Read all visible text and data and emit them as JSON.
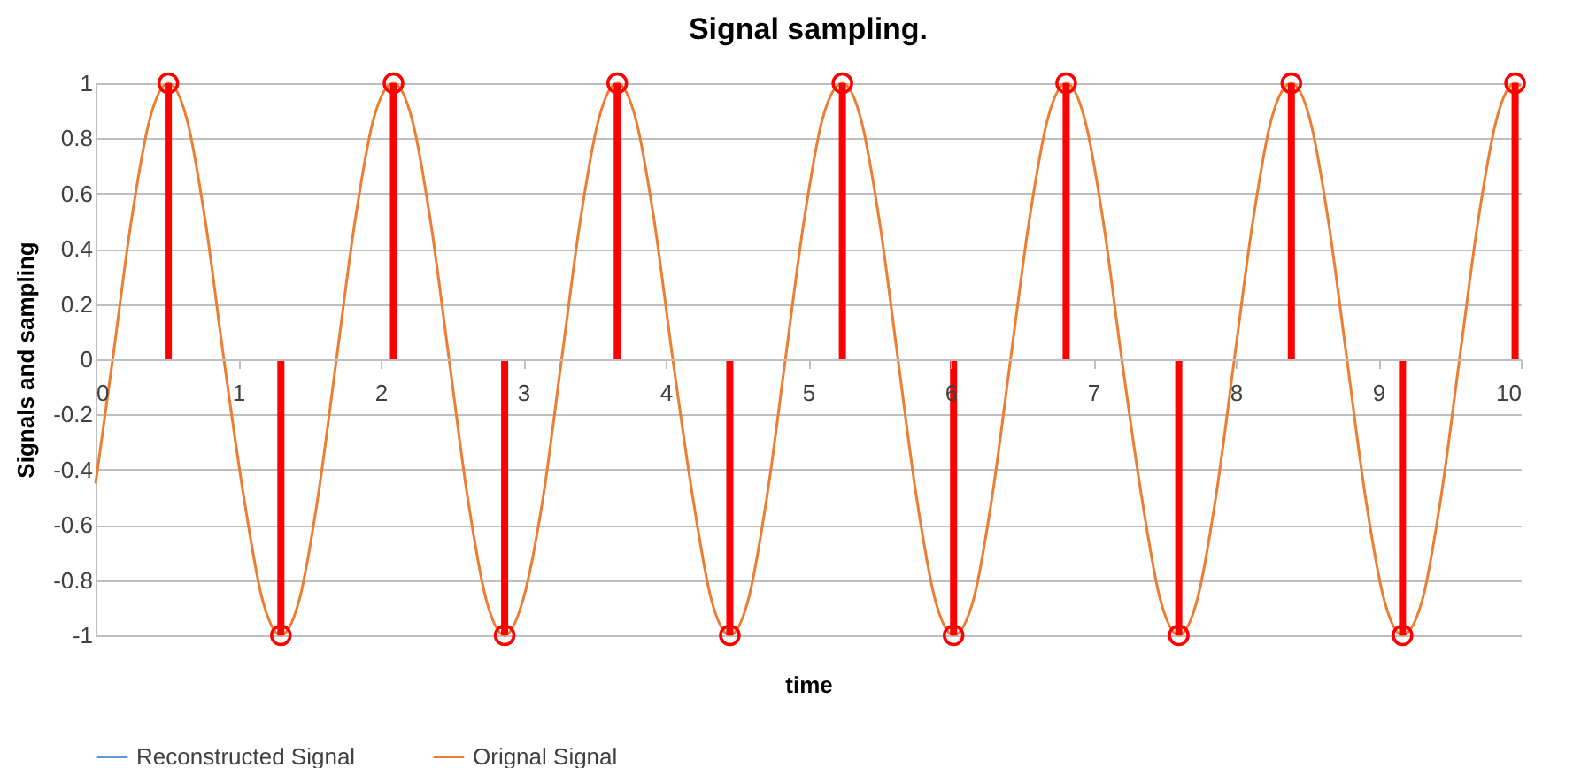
{
  "chart_data": {
    "type": "line",
    "title": "Signal sampling.",
    "xlabel": "time",
    "ylabel": "Signals and sampling",
    "xlim": [
      0,
      10
    ],
    "xticks": [
      0,
      1,
      2,
      3,
      4,
      5,
      6,
      7,
      8,
      9,
      10
    ],
    "ylim": [
      -1,
      1
    ],
    "yticks": [
      -1,
      -0.8,
      -0.6,
      -0.4,
      -0.2,
      0,
      0.2,
      0.4,
      0.6,
      0.8,
      1
    ],
    "grid": "y",
    "legend": "bottom",
    "series": [
      {
        "name": "Reconstructed Signal",
        "color": "#5b9bd5"
      },
      {
        "name": "Orignal Signal",
        "color": "#ed7d31",
        "x": [
          0,
          0.12,
          0.25,
          0.38,
          0.51,
          0.64,
          0.77,
          0.9,
          1.04,
          1.17,
          1.3,
          1.43,
          1.56,
          1.69,
          1.82,
          1.95,
          2.09,
          2.22,
          2.35,
          2.48,
          2.61,
          2.74,
          2.87,
          3.0,
          3.14,
          3.27,
          3.4,
          3.53,
          3.66,
          3.79,
          3.92,
          4.05,
          4.19,
          4.32,
          4.45,
          4.58,
          4.71,
          4.84,
          4.97,
          5.1,
          5.24,
          5.37,
          5.5,
          5.63,
          5.76,
          5.89,
          6.02,
          6.16,
          6.29,
          6.42,
          6.55,
          6.68,
          6.81,
          6.94,
          7.07,
          7.2,
          7.34,
          7.47,
          7.6,
          7.73,
          7.86,
          7.99,
          8.12,
          8.25,
          8.39,
          8.52,
          8.65,
          8.78,
          8.91,
          9.04,
          9.17,
          9.31,
          9.44,
          9.57,
          9.7,
          9.83,
          9.96,
          10
        ],
        "values": [
          -0.45,
          0,
          0.5,
          0.87,
          1,
          0.87,
          0.5,
          0,
          -0.5,
          -0.87,
          -1,
          -0.87,
          -0.5,
          0,
          0.5,
          0.87,
          1,
          0.87,
          0.5,
          0,
          -0.5,
          -0.87,
          -1,
          -0.87,
          -0.5,
          0,
          0.5,
          0.87,
          1,
          0.87,
          0.5,
          0,
          -0.5,
          -0.87,
          -1,
          -0.87,
          -0.5,
          0,
          0.5,
          0.87,
          1,
          0.87,
          0.5,
          0,
          -0.5,
          -0.87,
          -1,
          -0.87,
          -0.5,
          0,
          0.5,
          0.87,
          1,
          0.87,
          0.5,
          0,
          -0.5,
          -0.87,
          -1,
          -0.87,
          -0.5,
          0,
          0.5,
          0.87,
          1,
          0.87,
          0.5,
          0,
          -0.5,
          -0.87,
          -1,
          -0.87,
          -0.5,
          0,
          0.5,
          0.87,
          1,
          0.99
        ]
      },
      {
        "color": "#ff0000",
        "type": "lollipop",
        "marker": "circle",
        "x": [
          0.51,
          1.3,
          2.09,
          2.87,
          3.66,
          4.45,
          5.24,
          6.02,
          6.81,
          7.6,
          8.39,
          9.17,
          9.96
        ],
        "values": [
          1,
          -1,
          1,
          -1,
          1,
          -1,
          1,
          -1,
          1,
          -1,
          1,
          -1,
          1
        ]
      }
    ]
  }
}
